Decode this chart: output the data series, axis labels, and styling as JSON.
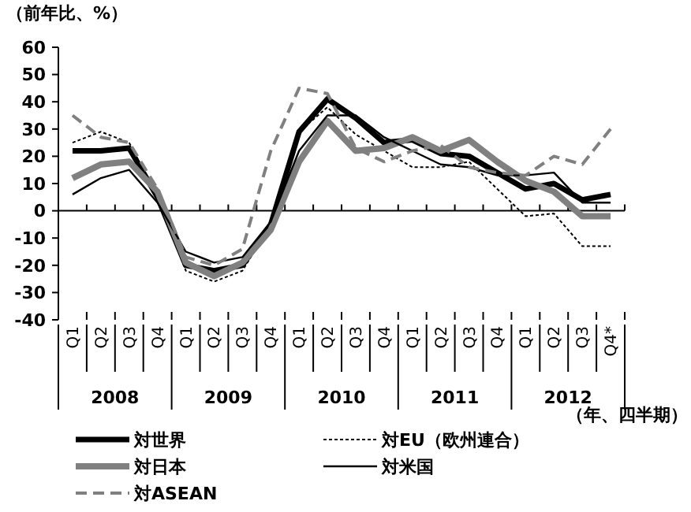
{
  "chart_data": {
    "type": "line",
    "ylabel": "（前年比、%）",
    "xlabel": "（年、四半期）",
    "categories": [
      "Q1",
      "Q2",
      "Q3",
      "Q4",
      "Q1",
      "Q2",
      "Q3",
      "Q4",
      "Q1",
      "Q2",
      "Q3",
      "Q4",
      "Q1",
      "Q2",
      "Q3",
      "Q4",
      "Q1",
      "Q2",
      "Q3",
      "Q4*"
    ],
    "annotations": [
      "2008",
      "2009",
      "2010",
      "2011",
      "2012"
    ],
    "ylim": [
      -40,
      60
    ],
    "yticks": [
      -40,
      -30,
      -20,
      -10,
      0,
      10,
      20,
      30,
      40,
      50,
      60
    ],
    "legend": "bottom",
    "series": [
      {
        "name": "対世界",
        "color": "#000000",
        "line_style": "solid",
        "values": [
          22,
          22,
          23,
          5,
          -20,
          -22,
          -20,
          -5,
          29,
          41,
          34,
          25,
          26,
          21,
          20,
          14,
          8,
          10,
          4,
          6
        ]
      },
      {
        "name": "対EU（欧州連合）",
        "color": "#000000",
        "line_style": "dotted",
        "values": [
          25,
          29,
          25,
          5,
          -22,
          -26,
          -22,
          -5,
          29,
          38,
          28,
          22,
          16,
          16,
          18,
          8,
          -2,
          -1,
          -13,
          -13
        ]
      },
      {
        "name": "対日本",
        "color": "#808080",
        "line_style": "solid",
        "values": [
          12,
          17,
          18,
          7,
          -19,
          -24,
          -19,
          -7,
          18,
          33,
          22,
          23,
          27,
          22,
          26,
          18,
          11,
          7,
          -2,
          -2
        ]
      },
      {
        "name": "対米国",
        "color": "#000000",
        "line_style": "solid",
        "values": [
          6,
          12,
          15,
          3,
          -15,
          -19,
          -17,
          -4,
          22,
          35,
          35,
          27,
          22,
          17,
          16,
          13,
          13,
          14,
          3,
          3
        ]
      },
      {
        "name": "対ASEAN",
        "color": "#808080",
        "line_style": "dashed",
        "values": [
          35,
          27,
          25,
          8,
          -17,
          -20,
          -14,
          22,
          45,
          43,
          23,
          18,
          22,
          24,
          16,
          14,
          13,
          20,
          17,
          30
        ]
      }
    ]
  }
}
